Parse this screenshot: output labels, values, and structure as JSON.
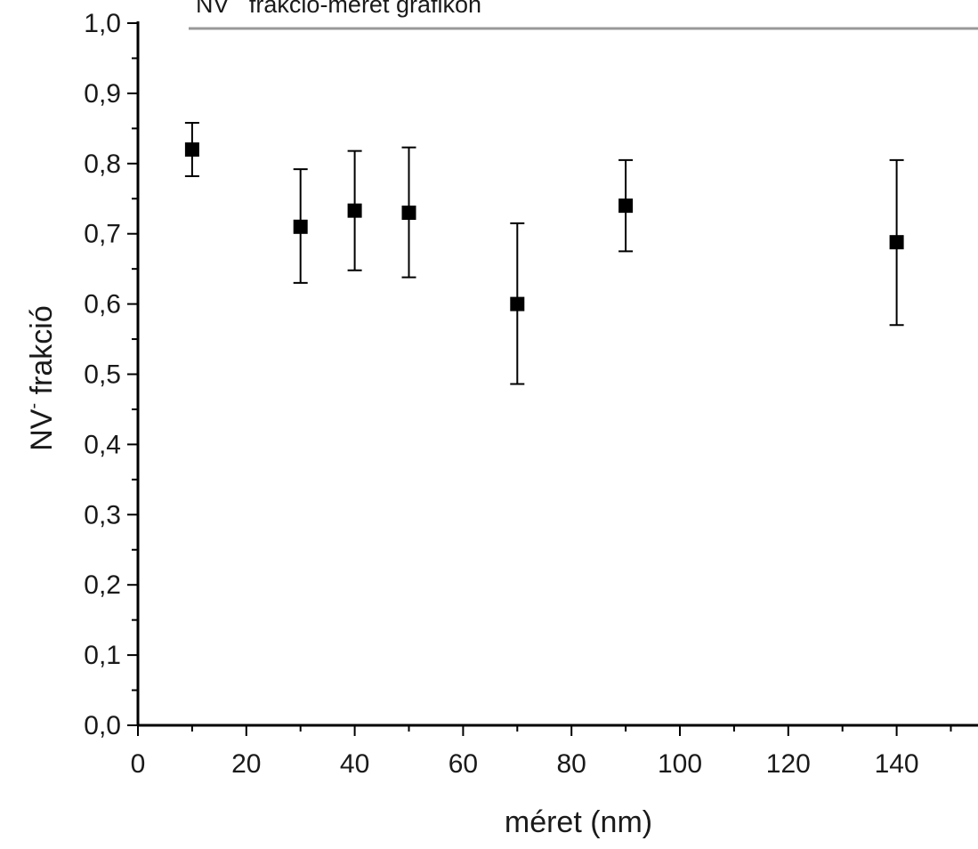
{
  "chart_data": {
    "type": "scatter",
    "title": "NV¯ frakció-méret grafikon",
    "xlabel": "méret (nm)",
    "ylabel_main": "NV",
    "ylabel_sup": "-",
    "ylabel_rest": " frakció",
    "xlim": [
      0,
      155
    ],
    "ylim": [
      0,
      1.0
    ],
    "x_ticks": [
      "0",
      "20",
      "40",
      "60",
      "80",
      "100",
      "120",
      "140"
    ],
    "y_ticks": [
      "0,0",
      "0,1",
      "0,2",
      "0,3",
      "0,4",
      "0,5",
      "0,6",
      "0,7",
      "0,8",
      "0,9",
      "1,0"
    ],
    "grid": false,
    "series": [
      {
        "x": [
          10,
          30,
          40,
          50,
          70,
          90,
          140
        ],
        "y": [
          0.82,
          0.71,
          0.733,
          0.73,
          0.6,
          0.74,
          0.688
        ],
        "err_low": [
          0.782,
          0.63,
          0.648,
          0.638,
          0.486,
          0.675,
          0.57
        ],
        "err_high": [
          0.858,
          0.792,
          0.818,
          0.823,
          0.715,
          0.805,
          0.805
        ]
      }
    ],
    "marker_color": "#000000",
    "axis_color": "#000000",
    "title_line_color": "#999999"
  }
}
